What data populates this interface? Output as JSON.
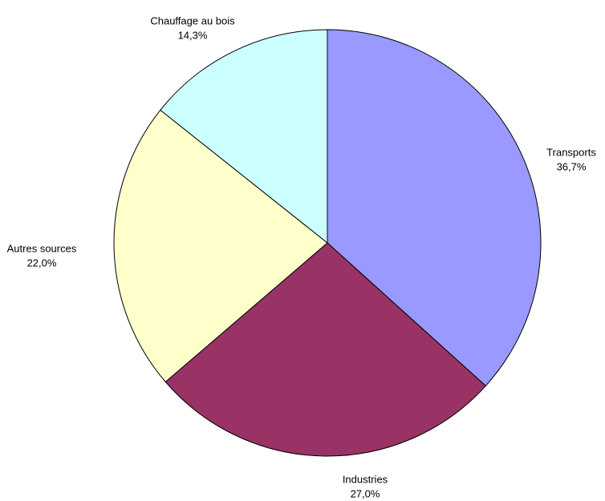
{
  "chart_data": {
    "type": "pie",
    "categories": [
      "Transports",
      "Industries",
      "Autres sources",
      "Chauffage au bois"
    ],
    "values": [
      36.7,
      27,
      22,
      14.3
    ],
    "value_labels": [
      "36,7%",
      "27,0%",
      "22,0%",
      "14,3%"
    ],
    "colors": [
      "#9999ff",
      "#993366",
      "#ffffcc",
      "#ccffff"
    ]
  }
}
